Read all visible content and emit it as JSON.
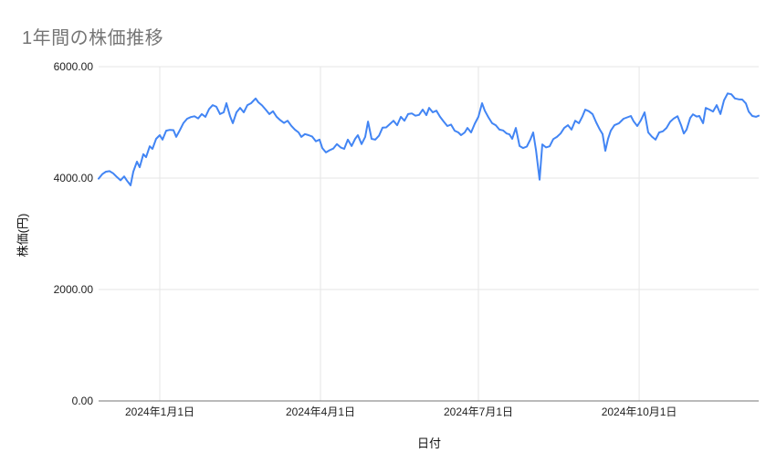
{
  "colors": {
    "line": "#4285f4",
    "grid": "#e6e6e6",
    "baseline": "#757575",
    "title_text": "#757575",
    "tick_text": "#212121",
    "axis_title_text": "#111111",
    "background": "#ffffff"
  },
  "chart_data": {
    "type": "line",
    "title": "1年間の株価推移",
    "xlabel": "日付",
    "ylabel": "株価(円)",
    "series_name": "株価",
    "ylim": [
      0,
      6000
    ],
    "grid": true,
    "legend_position": "none",
    "y_ticks": [
      {
        "value": 6000,
        "label": "6000.00"
      },
      {
        "value": 4000,
        "label": "4000.00"
      },
      {
        "value": 2000,
        "label": "2000.00"
      },
      {
        "value": 0,
        "label": "0.00"
      }
    ],
    "x_ticks": [
      {
        "pos": 0.0927,
        "label": "2024年1月1日"
      },
      {
        "pos": 0.3361,
        "label": "2024年4月1日"
      },
      {
        "pos": 0.5754,
        "label": "2024年7月1日"
      },
      {
        "pos": 0.8189,
        "label": "2024年10月1日"
      }
    ],
    "points": [
      [
        0.0,
        3990
      ],
      [
        0.0055,
        4070
      ],
      [
        0.0111,
        4115
      ],
      [
        0.0166,
        4125
      ],
      [
        0.0221,
        4085
      ],
      [
        0.0277,
        4020
      ],
      [
        0.0332,
        3960
      ],
      [
        0.0387,
        4030
      ],
      [
        0.0429,
        3955
      ],
      [
        0.0484,
        3870
      ],
      [
        0.0526,
        4115
      ],
      [
        0.0581,
        4295
      ],
      [
        0.0622,
        4195
      ],
      [
        0.0678,
        4430
      ],
      [
        0.0719,
        4375
      ],
      [
        0.0775,
        4570
      ],
      [
        0.0816,
        4525
      ],
      [
        0.0871,
        4705
      ],
      [
        0.0927,
        4770
      ],
      [
        0.0968,
        4690
      ],
      [
        0.1024,
        4850
      ],
      [
        0.1079,
        4865
      ],
      [
        0.1134,
        4860
      ],
      [
        0.1176,
        4740
      ],
      [
        0.1231,
        4860
      ],
      [
        0.1286,
        4990
      ],
      [
        0.1342,
        5065
      ],
      [
        0.1397,
        5095
      ],
      [
        0.1452,
        5110
      ],
      [
        0.1508,
        5070
      ],
      [
        0.1563,
        5150
      ],
      [
        0.1618,
        5100
      ],
      [
        0.1674,
        5240
      ],
      [
        0.1729,
        5310
      ],
      [
        0.1784,
        5280
      ],
      [
        0.184,
        5150
      ],
      [
        0.1895,
        5180
      ],
      [
        0.1936,
        5345
      ],
      [
        0.1992,
        5110
      ],
      [
        0.2033,
        4985
      ],
      [
        0.2089,
        5180
      ],
      [
        0.2144,
        5260
      ],
      [
        0.2199,
        5180
      ],
      [
        0.2255,
        5310
      ],
      [
        0.231,
        5345
      ],
      [
        0.2379,
        5430
      ],
      [
        0.2421,
        5360
      ],
      [
        0.2476,
        5305
      ],
      [
        0.2531,
        5230
      ],
      [
        0.2587,
        5150
      ],
      [
        0.2642,
        5200
      ],
      [
        0.2697,
        5100
      ],
      [
        0.2753,
        5040
      ],
      [
        0.2808,
        4990
      ],
      [
        0.2863,
        5030
      ],
      [
        0.2919,
        4940
      ],
      [
        0.2974,
        4870
      ],
      [
        0.3029,
        4820
      ],
      [
        0.3071,
        4740
      ],
      [
        0.3126,
        4790
      ],
      [
        0.3181,
        4770
      ],
      [
        0.3237,
        4745
      ],
      [
        0.3292,
        4660
      ],
      [
        0.3347,
        4690
      ],
      [
        0.3389,
        4540
      ],
      [
        0.3444,
        4460
      ],
      [
        0.35,
        4500
      ],
      [
        0.3555,
        4530
      ],
      [
        0.361,
        4610
      ],
      [
        0.3666,
        4550
      ],
      [
        0.3721,
        4525
      ],
      [
        0.3776,
        4690
      ],
      [
        0.3832,
        4575
      ],
      [
        0.3887,
        4705
      ],
      [
        0.3928,
        4770
      ],
      [
        0.3984,
        4610
      ],
      [
        0.4039,
        4740
      ],
      [
        0.4081,
        5015
      ],
      [
        0.4136,
        4705
      ],
      [
        0.4191,
        4690
      ],
      [
        0.4247,
        4760
      ],
      [
        0.4302,
        4905
      ],
      [
        0.4357,
        4910
      ],
      [
        0.4413,
        4970
      ],
      [
        0.4468,
        5030
      ],
      [
        0.4523,
        4950
      ],
      [
        0.4579,
        5100
      ],
      [
        0.4634,
        5030
      ],
      [
        0.4689,
        5150
      ],
      [
        0.4745,
        5160
      ],
      [
        0.48,
        5120
      ],
      [
        0.4855,
        5135
      ],
      [
        0.491,
        5230
      ],
      [
        0.4966,
        5130
      ],
      [
        0.5007,
        5260
      ],
      [
        0.5062,
        5180
      ],
      [
        0.5118,
        5210
      ],
      [
        0.5173,
        5100
      ],
      [
        0.5228,
        5015
      ],
      [
        0.5284,
        4935
      ],
      [
        0.5339,
        4960
      ],
      [
        0.5394,
        4850
      ],
      [
        0.545,
        4820
      ],
      [
        0.5491,
        4770
      ],
      [
        0.5546,
        4820
      ],
      [
        0.5588,
        4900
      ],
      [
        0.5643,
        4820
      ],
      [
        0.5699,
        4975
      ],
      [
        0.5754,
        5100
      ],
      [
        0.5809,
        5345
      ],
      [
        0.5851,
        5210
      ],
      [
        0.5906,
        5090
      ],
      [
        0.5961,
        4985
      ],
      [
        0.6017,
        4950
      ],
      [
        0.6072,
        4870
      ],
      [
        0.6127,
        4855
      ],
      [
        0.6183,
        4800
      ],
      [
        0.6224,
        4785
      ],
      [
        0.6266,
        4705
      ],
      [
        0.6321,
        4900
      ],
      [
        0.6377,
        4575
      ],
      [
        0.6432,
        4540
      ],
      [
        0.6487,
        4565
      ],
      [
        0.6543,
        4700
      ],
      [
        0.6584,
        4820
      ],
      [
        0.6626,
        4500
      ],
      [
        0.668,
        3970
      ],
      [
        0.6722,
        4605
      ],
      [
        0.6777,
        4550
      ],
      [
        0.6833,
        4570
      ],
      [
        0.6888,
        4700
      ],
      [
        0.6943,
        4740
      ],
      [
        0.6999,
        4800
      ],
      [
        0.7054,
        4900
      ],
      [
        0.711,
        4950
      ],
      [
        0.7165,
        4870
      ],
      [
        0.722,
        5030
      ],
      [
        0.7276,
        4985
      ],
      [
        0.7331,
        5110
      ],
      [
        0.7372,
        5230
      ],
      [
        0.7428,
        5200
      ],
      [
        0.7483,
        5150
      ],
      [
        0.7538,
        5000
      ],
      [
        0.7594,
        4870
      ],
      [
        0.7635,
        4790
      ],
      [
        0.7676,
        4490
      ],
      [
        0.7718,
        4705
      ],
      [
        0.7759,
        4850
      ],
      [
        0.7815,
        4950
      ],
      [
        0.7884,
        4985
      ],
      [
        0.7953,
        5065
      ],
      [
        0.8008,
        5090
      ],
      [
        0.8064,
        5115
      ],
      [
        0.8105,
        5020
      ],
      [
        0.8161,
        4935
      ],
      [
        0.8216,
        5040
      ],
      [
        0.8271,
        5180
      ],
      [
        0.8327,
        4820
      ],
      [
        0.8382,
        4745
      ],
      [
        0.8437,
        4690
      ],
      [
        0.8493,
        4820
      ],
      [
        0.8548,
        4840
      ],
      [
        0.8603,
        4900
      ],
      [
        0.8659,
        5010
      ],
      [
        0.8714,
        5070
      ],
      [
        0.877,
        5110
      ],
      [
        0.8825,
        4950
      ],
      [
        0.8866,
        4800
      ],
      [
        0.8908,
        4870
      ],
      [
        0.8963,
        5080
      ],
      [
        0.9004,
        5145
      ],
      [
        0.906,
        5105
      ],
      [
        0.9101,
        5115
      ],
      [
        0.9157,
        4985
      ],
      [
        0.9198,
        5260
      ],
      [
        0.9254,
        5230
      ],
      [
        0.9309,
        5195
      ],
      [
        0.9364,
        5310
      ],
      [
        0.942,
        5150
      ],
      [
        0.9475,
        5395
      ],
      [
        0.953,
        5520
      ],
      [
        0.9585,
        5505
      ],
      [
        0.9641,
        5430
      ],
      [
        0.9696,
        5415
      ],
      [
        0.9751,
        5410
      ],
      [
        0.9807,
        5340
      ],
      [
        0.9848,
        5195
      ],
      [
        0.9903,
        5115
      ],
      [
        0.9958,
        5100
      ],
      [
        1.0,
        5120
      ]
    ]
  }
}
